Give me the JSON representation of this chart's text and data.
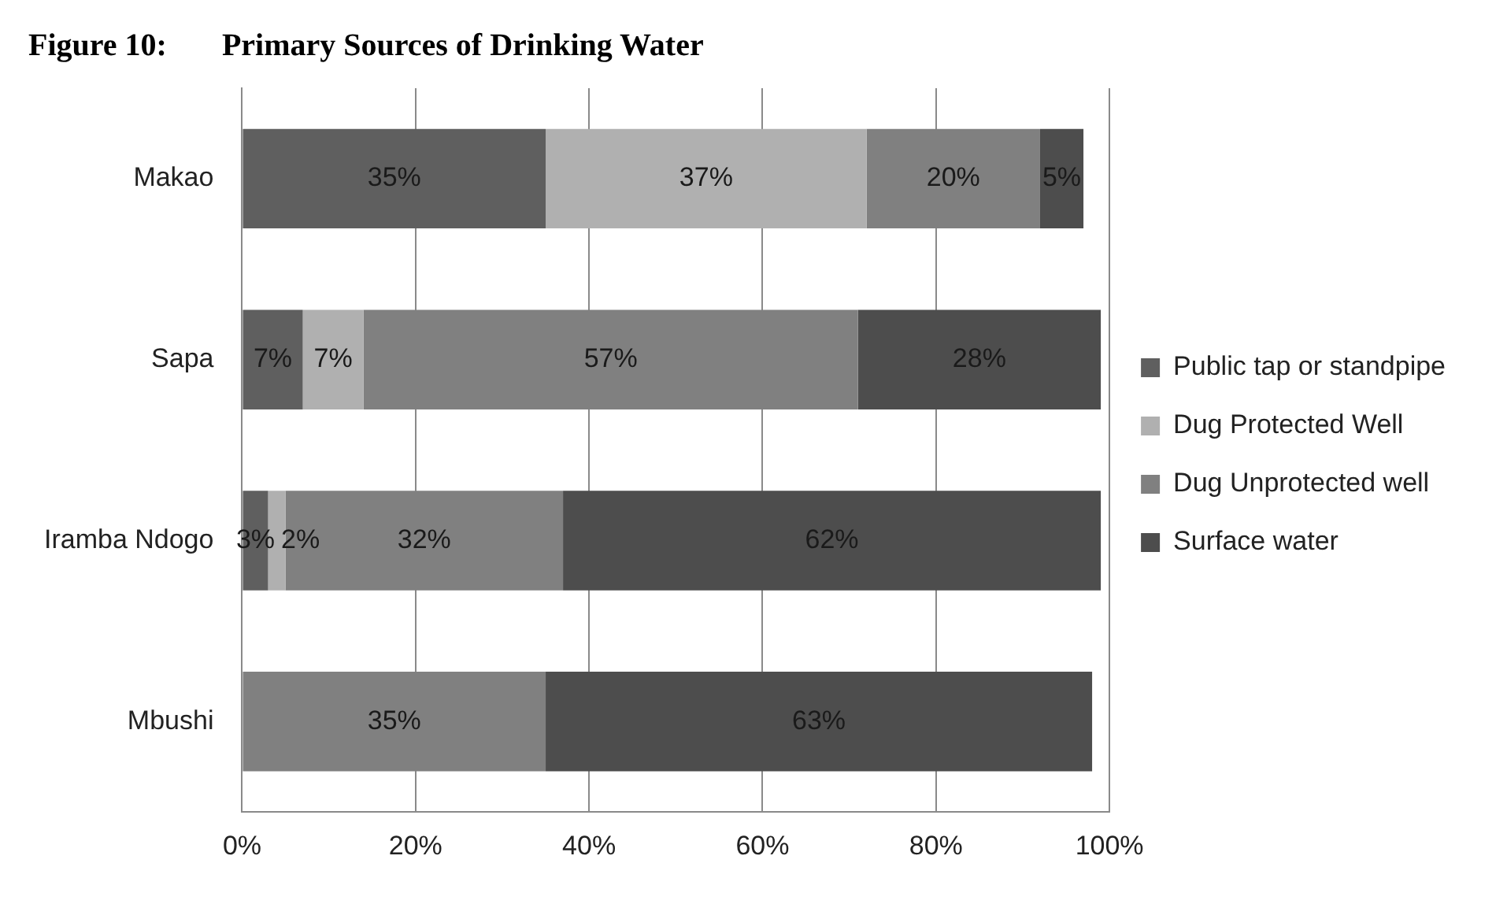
{
  "chart_data": {
    "type": "bar",
    "orientation": "horizontal",
    "stacked": true,
    "title": "Figure 10:       Primary Sources of Drinking Water",
    "categories": [
      "Makao",
      "Sapa",
      "Iramba Ndogo",
      "Mbushi"
    ],
    "series": [
      {
        "name": "Public tap or standpipe",
        "color": "#5f5f5f",
        "values": [
          35,
          7,
          3,
          null
        ],
        "value_labels": [
          "35%",
          "7%",
          "3%",
          null
        ]
      },
      {
        "name": "Dug Protected Well",
        "color": "#b0b0b0",
        "values": [
          37,
          7,
          2,
          null
        ],
        "value_labels": [
          "37%",
          "7%",
          "2%",
          null
        ]
      },
      {
        "name": "Dug Unprotected well",
        "color": "#808080",
        "values": [
          20,
          57,
          32,
          35
        ],
        "value_labels": [
          "20%",
          "57%",
          "32%",
          "35%"
        ]
      },
      {
        "name": "Surface water",
        "color": "#4d4d4d",
        "values": [
          5,
          28,
          62,
          63
        ],
        "value_labels": [
          "5%",
          "28%",
          "62%",
          "63%"
        ]
      }
    ],
    "xlim": [
      0,
      100
    ],
    "xticks": [
      {
        "value": 0,
        "label": "0%"
      },
      {
        "value": 20,
        "label": "20%"
      },
      {
        "value": 40,
        "label": "40%"
      },
      {
        "value": 60,
        "label": "60%"
      },
      {
        "value": 80,
        "label": "80%"
      },
      {
        "value": 100,
        "label": "100%"
      }
    ],
    "grid": "x",
    "legend": "right"
  }
}
